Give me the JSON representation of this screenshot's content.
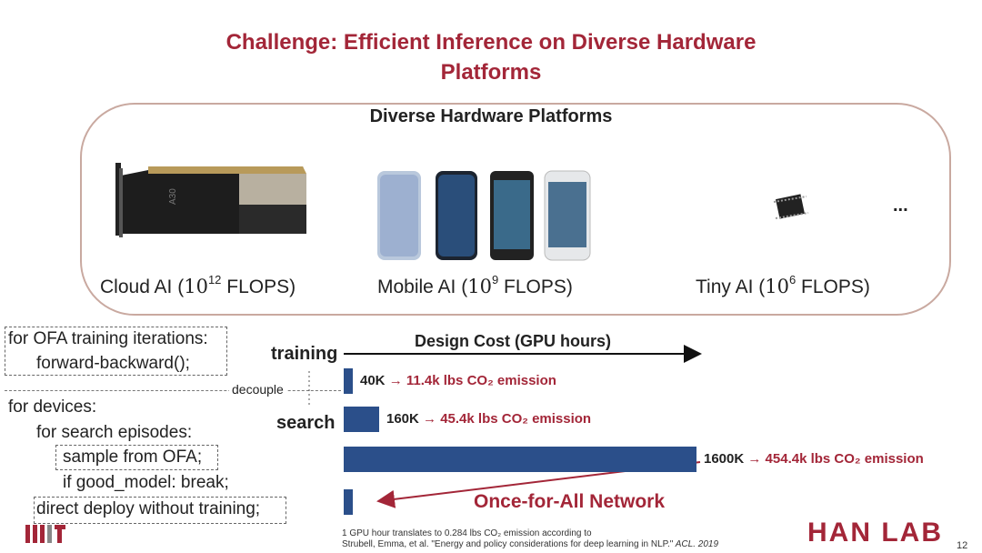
{
  "slide": {
    "title_line1": "Challenge: Efficient Inference on Diverse Hardware",
    "title_line2": "Platforms",
    "page_number": "12"
  },
  "hardware": {
    "heading": "Diverse Hardware Platforms",
    "ellipsis": "...",
    "cloud": {
      "label": "Cloud AI (",
      "base": "10",
      "exp": "12",
      "unit": " FLOPS)"
    },
    "mobile": {
      "label": "Mobile AI (",
      "base": "10",
      "exp": "9",
      "unit": " FLOPS)"
    },
    "tiny": {
      "label": "Tiny AI (",
      "base": "10",
      "exp": "6",
      "unit": " FLOPS)"
    }
  },
  "code": {
    "line1": "for OFA training iterations:",
    "line2": "forward-backward();",
    "decouple": "decouple",
    "line3": "for devices:",
    "line4": "for search episodes:",
    "line5": "sample from OFA;",
    "line6": "if good_model: break;",
    "line7": "direct deploy without training;"
  },
  "chart_labels": {
    "design_cost": "Design Cost (GPU hours)",
    "training": "training",
    "search": "search",
    "ofa_network": "Once-for-All Network"
  },
  "chart_data": {
    "type": "bar",
    "orientation": "horizontal",
    "title": "Design Cost (GPU hours)",
    "bars": [
      {
        "value": 40,
        "label": "40K",
        "emission": "→ 11.4k lbs CO₂ emission"
      },
      {
        "value": 160,
        "label": "160K",
        "emission": "→ 45.4k lbs CO₂ emission"
      },
      {
        "value": 1600,
        "label": "1600K",
        "emission": "→ 454.4k lbs CO₂ emission"
      },
      {
        "value": 40,
        "label": "",
        "emission": ""
      }
    ]
  },
  "footnote": {
    "line1": "1 GPU hour translates to 0.284 lbs CO₂ emission according to",
    "line2a": "Strubell, Emma, et al. \"Energy and policy considerations for deep learning in NLP.\"",
    "line2b": " ACL. 2019"
  },
  "logos": {
    "mit": "MIT",
    "hanlab": "HAN LAB"
  },
  "colors": {
    "accent": "#a32638",
    "bar": "#2b4f8a"
  }
}
